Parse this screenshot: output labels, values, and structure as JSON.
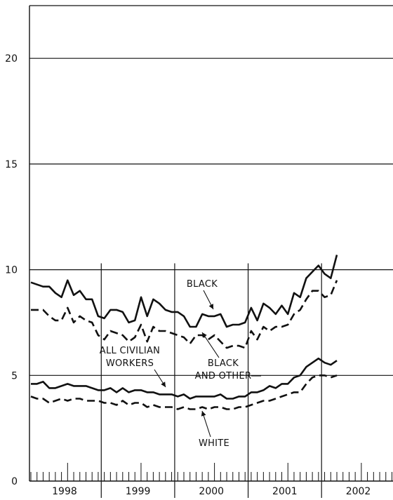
{
  "chart_data": {
    "type": "line",
    "title": "",
    "xlabel": "",
    "ylabel": "",
    "ylim": [
      0,
      22
    ],
    "yticks": [
      0,
      5,
      10,
      15,
      20
    ],
    "year_labels": [
      "1998",
      "1999",
      "2000",
      "2001",
      "2002"
    ],
    "x_start": "1998-01",
    "months_per_year": 12,
    "grid": "horizontal",
    "legend": "none",
    "annotations": [
      {
        "text": "BLACK",
        "target_series": "black"
      },
      {
        "text": "BLACK",
        "target_series": "black_and_other"
      },
      {
        "text": "AND OTHER",
        "target_series": "black_and_other"
      },
      {
        "text": "ALL CIVILIAN",
        "target_series": "all_civilian_workers"
      },
      {
        "text": "WORKERS",
        "target_series": "all_civilian_workers"
      },
      {
        "text": "WHITE",
        "target_series": "white"
      }
    ],
    "series": [
      {
        "key": "black",
        "style": "solid",
        "values": [
          9.4,
          9.3,
          9.2,
          9.2,
          8.9,
          8.7,
          9.5,
          8.8,
          9.0,
          8.6,
          8.6,
          7.8,
          7.7,
          8.1,
          8.1,
          8.0,
          7.5,
          7.6,
          8.7,
          7.8,
          8.6,
          8.4,
          8.1,
          8.0,
          8.0,
          7.8,
          7.3,
          7.3,
          7.9,
          7.8,
          7.8,
          7.9,
          7.3,
          7.4,
          7.4,
          7.5,
          8.2,
          7.6,
          8.4,
          8.2,
          7.9,
          8.3,
          7.9,
          8.9,
          8.7,
          9.6,
          9.9,
          10.2,
          9.8,
          9.6,
          10.7
        ]
      },
      {
        "key": "black_and_other",
        "style": "dashed",
        "values": [
          8.1,
          8.1,
          8.1,
          7.8,
          7.6,
          7.6,
          8.2,
          7.5,
          7.8,
          7.6,
          7.5,
          6.9,
          6.7,
          7.1,
          7.0,
          6.9,
          6.6,
          6.8,
          7.4,
          6.6,
          7.3,
          7.1,
          7.1,
          7.0,
          6.9,
          6.8,
          6.5,
          6.9,
          6.9,
          6.7,
          6.9,
          6.6,
          6.3,
          6.4,
          6.4,
          6.3,
          7.1,
          6.7,
          7.3,
          7.1,
          7.3,
          7.3,
          7.4,
          7.9,
          8.1,
          8.6,
          9.0,
          9.0,
          8.7,
          8.8,
          9.5
        ]
      },
      {
        "key": "all_civilian_workers",
        "style": "solid",
        "values": [
          4.6,
          4.6,
          4.7,
          4.4,
          4.4,
          4.5,
          4.6,
          4.5,
          4.5,
          4.5,
          4.4,
          4.3,
          4.3,
          4.4,
          4.2,
          4.4,
          4.2,
          4.3,
          4.3,
          4.2,
          4.2,
          4.1,
          4.1,
          4.1,
          4.0,
          4.1,
          3.9,
          4.0,
          4.0,
          4.0,
          4.0,
          4.1,
          3.9,
          3.9,
          4.0,
          4.0,
          4.2,
          4.2,
          4.3,
          4.5,
          4.4,
          4.6,
          4.6,
          4.9,
          5.0,
          5.4,
          5.6,
          5.8,
          5.6,
          5.5,
          5.7
        ]
      },
      {
        "key": "white",
        "style": "dashed",
        "values": [
          4.0,
          3.9,
          3.9,
          3.7,
          3.8,
          3.9,
          3.8,
          3.9,
          3.9,
          3.8,
          3.8,
          3.8,
          3.7,
          3.7,
          3.6,
          3.8,
          3.6,
          3.7,
          3.7,
          3.5,
          3.6,
          3.5,
          3.5,
          3.5,
          3.4,
          3.5,
          3.4,
          3.4,
          3.5,
          3.4,
          3.5,
          3.5,
          3.4,
          3.4,
          3.5,
          3.5,
          3.6,
          3.7,
          3.8,
          3.8,
          3.9,
          4.0,
          4.1,
          4.2,
          4.2,
          4.6,
          4.9,
          5.0,
          5.0,
          4.9,
          5.0
        ]
      }
    ]
  }
}
